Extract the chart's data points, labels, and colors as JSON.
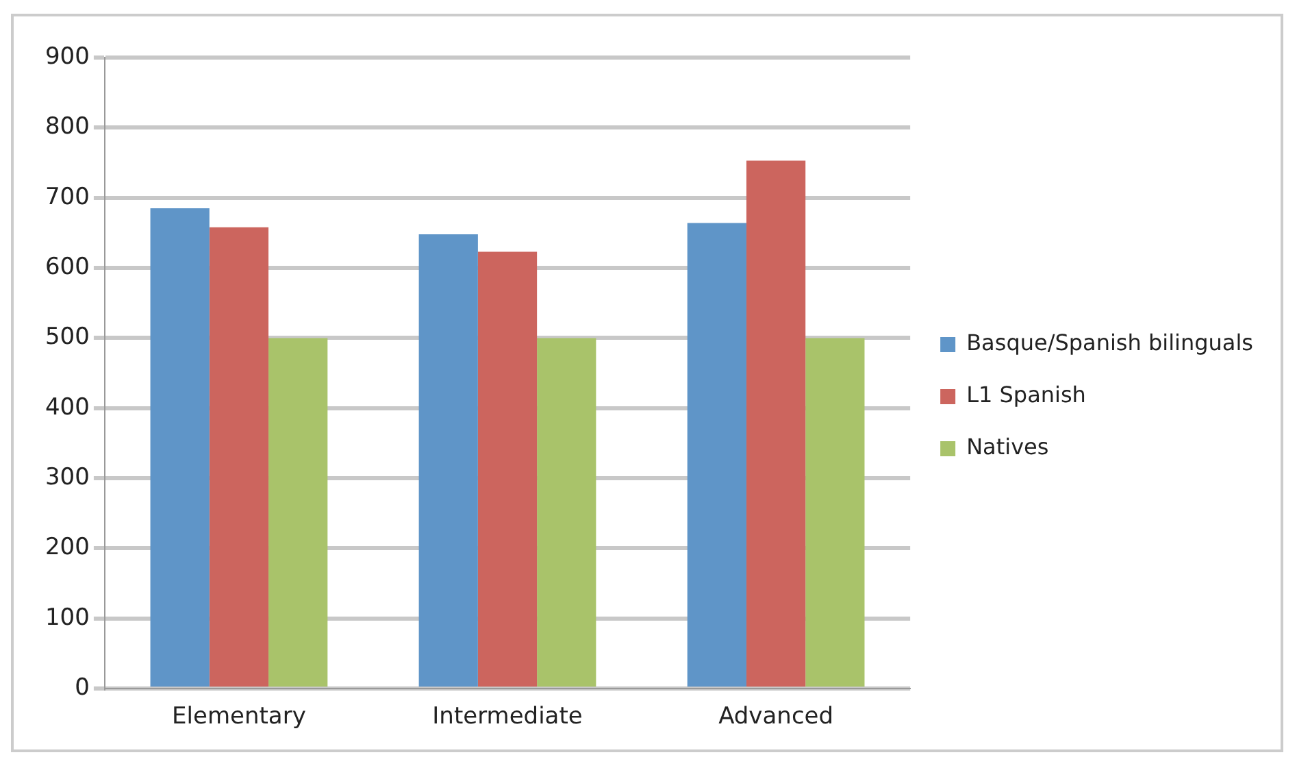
{
  "chart_data": {
    "type": "bar",
    "categories": [
      "Elementary",
      "Intermediate",
      "Advanced"
    ],
    "series": [
      {
        "name": "Basque/Spanish bilinguals",
        "color": "#5f95c8",
        "values": [
          685,
          648,
          664
        ]
      },
      {
        "name": "L1 Spanish",
        "color": "#cc655e",
        "values": [
          658,
          623,
          753
        ]
      },
      {
        "name": "Natives",
        "color": "#a9c36a",
        "values": [
          500,
          500,
          500
        ]
      }
    ],
    "ylim": [
      0,
      900
    ],
    "yticks": [
      0,
      100,
      200,
      300,
      400,
      500,
      600,
      700,
      800,
      900
    ],
    "grid": "y",
    "legend": "right"
  }
}
